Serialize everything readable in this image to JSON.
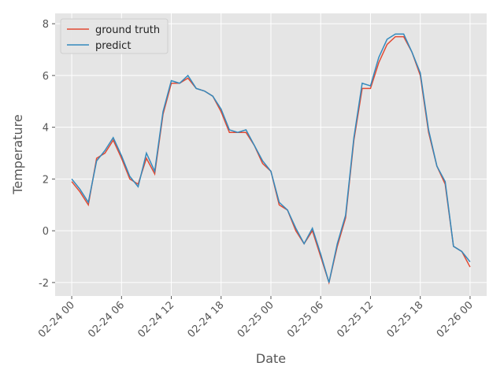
{
  "chart_data": {
    "type": "line",
    "xlabel": "Date",
    "ylabel": "Temperature",
    "x": [
      "02-24 00",
      "02-24 01",
      "02-24 02",
      "02-24 03",
      "02-24 04",
      "02-24 05",
      "02-24 06",
      "02-24 07",
      "02-24 08",
      "02-24 09",
      "02-24 10",
      "02-24 11",
      "02-24 12",
      "02-24 13",
      "02-24 14",
      "02-24 15",
      "02-24 16",
      "02-24 17",
      "02-24 18",
      "02-24 19",
      "02-24 20",
      "02-24 21",
      "02-24 22",
      "02-24 23",
      "02-25 00",
      "02-25 01",
      "02-25 02",
      "02-25 03",
      "02-25 04",
      "02-25 05",
      "02-25 06",
      "02-25 07",
      "02-25 08",
      "02-25 09",
      "02-25 10",
      "02-25 11",
      "02-25 12",
      "02-25 13",
      "02-25 14",
      "02-25 15",
      "02-25 16",
      "02-25 17",
      "02-25 18",
      "02-25 19",
      "02-25 20",
      "02-25 21",
      "02-25 22",
      "02-25 23",
      "02-26 00"
    ],
    "series": [
      {
        "name": "ground truth",
        "color": "#e24a33",
        "values": [
          1.9,
          1.5,
          1.0,
          2.8,
          3.0,
          3.5,
          2.8,
          2.0,
          1.8,
          2.8,
          2.2,
          4.5,
          5.7,
          5.7,
          5.9,
          5.5,
          5.4,
          5.2,
          4.6,
          3.8,
          3.8,
          3.8,
          3.3,
          2.6,
          2.3,
          1.0,
          0.8,
          0.0,
          -0.5,
          0.0,
          -1.0,
          -2.0,
          -0.6,
          0.5,
          3.5,
          5.5,
          5.5,
          6.5,
          7.2,
          7.5,
          7.5,
          6.9,
          6.0,
          3.8,
          2.5,
          1.8,
          -0.6,
          -0.8,
          -1.4
        ]
      },
      {
        "name": "predict",
        "color": "#348abd",
        "values": [
          2.0,
          1.6,
          1.1,
          2.7,
          3.1,
          3.6,
          2.9,
          2.1,
          1.7,
          3.0,
          2.3,
          4.6,
          5.8,
          5.7,
          6.0,
          5.5,
          5.4,
          5.2,
          4.7,
          3.9,
          3.8,
          3.9,
          3.3,
          2.7,
          2.3,
          1.1,
          0.8,
          0.1,
          -0.5,
          0.1,
          -0.9,
          -2.0,
          -0.5,
          0.6,
          3.6,
          5.7,
          5.6,
          6.7,
          7.4,
          7.6,
          7.6,
          6.9,
          6.1,
          3.9,
          2.5,
          1.9,
          -0.6,
          -0.8,
          -1.2
        ]
      }
    ],
    "xlim": [
      "02-23 22",
      "02-26 02"
    ],
    "xticks": [
      "02-24 00",
      "02-24 06",
      "02-24 12",
      "02-24 18",
      "02-25 00",
      "02-25 06",
      "02-25 12",
      "02-25 18",
      "02-26 00"
    ],
    "ylim": [
      -2.52,
      8.4
    ],
    "yticks": [
      -2,
      0,
      2,
      4,
      6,
      8
    ],
    "grid": true,
    "legend": "upper left"
  }
}
